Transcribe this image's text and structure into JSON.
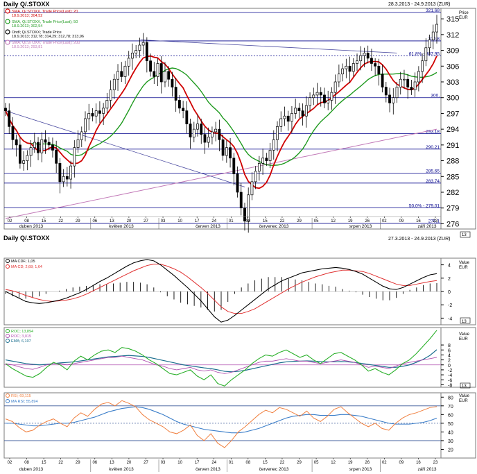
{
  "top_title": "Daily Q/.STOXX",
  "top_range": "28.3.2013 - 24.9.2013 (ZUR)",
  "bottom_title": "Daily Q/.STOXX",
  "bottom_range": "27.3.2013 - 24.9.2013 (ZUR)",
  "colors": {
    "candle": "#000000",
    "sma20": "#d00000",
    "sma50": "#1f9a1f",
    "sma200": "#c27ab8",
    "hline": "#00008b",
    "macd": "#000000",
    "macd_signal": "#e03030",
    "hist": "#000000",
    "roc": "#2ab02a",
    "roc2": "#b050b0",
    "ema": "#1a6e8e",
    "rsi": "#f08040",
    "marsi": "#3b7ec9",
    "band": "#3b5998"
  },
  "legend_top": [
    {
      "line1": "SMA, Q/.STOXX, Trade Price(Last); 20",
      "line2": "18.9.2013; 304,52",
      "color": "#d00000"
    },
    {
      "line1": "SMA, Q/.STOXX, Trade Price(Last); 50",
      "line2": "18.9.2013; 302,54",
      "color": "#1f9a1f"
    },
    {
      "line1": "Ondl; Q/.STOXX; Trade Price",
      "line2": "18.9.2013; 312,78; 314,29; 312,78; 313,96",
      "color": "#000000"
    },
    {
      "line1": "SMA, Q/.STOXX, Trade Price(Last); 200",
      "line2": "18.9.2013; 293,81",
      "color": "#c27ab8"
    }
  ],
  "legend_macd": [
    {
      "text": "MA CDF; 1,05",
      "color": "#000000"
    },
    {
      "text": "MA CD; 2,68; 1,64",
      "color": "#e03030"
    }
  ],
  "legend_roc": [
    {
      "text": "ROC; 13,894",
      "color": "#2ab02a"
    },
    {
      "text": "ROC; 3,015",
      "color": "#b050b0"
    },
    {
      "text": "EMA; 6,107",
      "color": "#1a6e8e"
    }
  ],
  "legend_rsi": [
    {
      "text": "RSI; 69,115",
      "color": "#f08040"
    },
    {
      "text": "MA RSI; 55,894",
      "color": "#3b7ec9"
    }
  ],
  "axis_labels": {
    "price_top": "Price",
    "price_unit": "EUR",
    "value": "Value",
    "value_unit": "EUR",
    "scale_top": "13",
    "scale_mid": "13",
    "scale_roc": "13",
    "scale_rsi": "13"
  },
  "x_day_ticks": [
    "02",
    "08",
    "15",
    "22",
    "29",
    "06",
    "13",
    "20",
    "27",
    "03",
    "10",
    "17",
    "24",
    "01",
    "08",
    "15",
    "22",
    "29",
    "05",
    "12",
    "19",
    "26",
    "02",
    "09",
    "16",
    "23"
  ],
  "months": [
    "duben 2013",
    "květen 2013",
    "červen 2013",
    "červenec 2013",
    "srpen 2013",
    "září 2013"
  ],
  "fib_labels": [
    "321,68",
    "310,8",
    "61,8% - 307,95",
    "300,",
    "293,18",
    "290,21",
    "285,65",
    "283,74",
    "50,0% - 279,01",
    "276,1"
  ],
  "chart_data": [
    {
      "type": "candlestick",
      "title": "Daily Q/.STOXX",
      "ylabel": "Price EUR",
      "ylim": [
        275,
        317
      ],
      "yticks": [
        276,
        279,
        282,
        285,
        288,
        291,
        294,
        297,
        300,
        303,
        306,
        309,
        312,
        315
      ],
      "hlines": [
        321.68,
        310.8,
        307.95,
        300,
        293.18,
        290.21,
        285.65,
        283.74,
        279.01,
        276.1
      ],
      "close": [
        297.5,
        294.5,
        292.0,
        291.0,
        287.5,
        288.0,
        289.0,
        290.5,
        291.5,
        289.5,
        292.0,
        291.5,
        291.0,
        290.0,
        287.5,
        284.0,
        285.0,
        284.5,
        287.0,
        290.5,
        292.0,
        293.5,
        296.0,
        297.0,
        296.5,
        297.5,
        297.0,
        298.0,
        299.5,
        301.5,
        303.5,
        305.0,
        304.0,
        306.0,
        307.5,
        308.5,
        309.0,
        310.0,
        310.5,
        307.0,
        305.0,
        304.0,
        306.5,
        303.0,
        305.0,
        303.5,
        302.0,
        299.5,
        298.0,
        297.5,
        295.0,
        292.5,
        294.0,
        295.0,
        293.0,
        291.5,
        292.5,
        293.5,
        294.0,
        292.0,
        289.0,
        290.5,
        288.5,
        285.5,
        282.0,
        279.0,
        276.5,
        281.5,
        284.0,
        286.0,
        287.5,
        288.5,
        288.0,
        290.0,
        292.0,
        294.5,
        296.0,
        296.5,
        295.5,
        297.0,
        298.0,
        297.5,
        296.5,
        298.5,
        300.0,
        300.5,
        301.0,
        300.5,
        299.0,
        299.5,
        301.0,
        303.0,
        304.5,
        305.5,
        306.0,
        305.0,
        306.5,
        307.0,
        308.0,
        308.5,
        307.5,
        306.5,
        306.0,
        304.5,
        302.0,
        300.5,
        299.0,
        300.0,
        302.0,
        303.5,
        303.5,
        302.0,
        301.5,
        303.0,
        305.0,
        307.0,
        309.5,
        311.0,
        312.5,
        313.96
      ]
    },
    {
      "type": "line",
      "title": "MACD",
      "ylabel": "Value EUR",
      "ylim": [
        -5,
        5
      ],
      "yticks": [
        -4,
        -2,
        0,
        2,
        4
      ],
      "macd": [
        0.0,
        -0.5,
        -1.0,
        -1.5,
        -1.7,
        -1.8,
        -1.7,
        -1.5,
        -1.3,
        -1.0,
        -0.6,
        -0.2,
        0.3,
        0.9,
        1.5,
        2.0,
        2.6,
        3.2,
        3.8,
        4.3,
        4.6,
        4.8,
        4.6,
        4.0,
        3.2,
        2.4,
        1.5,
        0.6,
        -0.4,
        -1.4,
        -2.6,
        -3.8,
        -4.6,
        -4.3,
        -3.6,
        -2.8,
        -2.0,
        -1.2,
        -0.4,
        0.4,
        1.0,
        1.6,
        2.0,
        2.4,
        2.8,
        3.0,
        3.2,
        3.4,
        3.5,
        3.6,
        3.5,
        3.3,
        3.0,
        2.6,
        2.0,
        1.4,
        0.8,
        0.4,
        0.3,
        0.6,
        1.1,
        1.6,
        2.1,
        2.5,
        2.68
      ],
      "signal": [
        0.3,
        0.1,
        -0.2,
        -0.6,
        -0.9,
        -1.2,
        -1.4,
        -1.5,
        -1.4,
        -1.3,
        -1.1,
        -0.8,
        -0.4,
        0.1,
        0.6,
        1.1,
        1.6,
        2.1,
        2.6,
        3.1,
        3.5,
        3.9,
        4.1,
        4.1,
        3.8,
        3.4,
        2.9,
        2.2,
        1.4,
        0.6,
        -0.3,
        -1.3,
        -2.3,
        -3.0,
        -3.3,
        -3.3,
        -3.0,
        -2.6,
        -2.0,
        -1.4,
        -0.8,
        -0.2,
        0.4,
        0.9,
        1.4,
        1.8,
        2.2,
        2.5,
        2.8,
        3.0,
        3.2,
        3.2,
        3.1,
        3.0,
        2.7,
        2.3,
        1.9,
        1.5,
        1.1,
        0.9,
        0.9,
        1.1,
        1.3,
        1.5,
        1.64
      ]
    },
    {
      "type": "line",
      "title": "ROC",
      "ylabel": "Value EUR",
      "ylim": [
        -9,
        15
      ],
      "yticks": [
        -8,
        -6,
        -4,
        -2,
        0,
        2,
        4,
        6,
        8
      ],
      "roc": [
        0.5,
        -1.5,
        -3.0,
        -4.5,
        -5.0,
        -3.5,
        -1.0,
        1.0,
        0.0,
        -2.0,
        1.5,
        3.5,
        2.0,
        4.0,
        5.5,
        6.0,
        5.0,
        7.0,
        6.5,
        5.5,
        4.0,
        2.0,
        0.5,
        -1.5,
        -3.5,
        -4.0,
        -3.0,
        -2.0,
        -4.5,
        -6.0,
        -4.0,
        -7.5,
        -8.5,
        -6.0,
        -4.0,
        -2.0,
        0.5,
        2.5,
        4.0,
        3.5,
        5.0,
        6.0,
        4.5,
        3.0,
        4.0,
        2.0,
        0.5,
        2.5,
        4.5,
        5.0,
        3.5,
        2.0,
        0.0,
        -2.5,
        -1.5,
        -3.0,
        -4.0,
        -2.0,
        0.5,
        2.0,
        4.5,
        7.5,
        10.5,
        13.894
      ],
      "roc2": [
        0.5,
        0.0,
        -0.8,
        -1.5,
        -1.8,
        -1.0,
        0.0,
        0.5,
        0.5,
        0.0,
        0.5,
        1.0,
        1.5,
        2.0,
        2.5,
        3.0,
        3.0,
        3.5,
        3.0,
        2.5,
        2.0,
        1.0,
        0.0,
        -0.5,
        -1.5,
        -2.0,
        -1.5,
        -1.0,
        -2.0,
        -2.5,
        -2.0,
        -3.0,
        -3.5,
        -3.0,
        -2.0,
        -1.0,
        0.0,
        1.0,
        1.5,
        1.5,
        2.0,
        2.5,
        2.0,
        1.5,
        1.5,
        1.0,
        0.5,
        1.0,
        1.5,
        2.0,
        1.5,
        1.0,
        0.0,
        -1.0,
        -0.5,
        -1.0,
        -1.5,
        -0.5,
        0.5,
        1.0,
        1.5,
        2.0,
        2.5,
        3.015
      ],
      "ema": [
        2.0,
        1.5,
        1.0,
        0.5,
        0.2,
        0.0,
        0.2,
        0.5,
        0.8,
        1.0,
        1.2,
        1.6,
        2.0,
        2.4,
        2.8,
        3.2,
        3.4,
        3.6,
        3.8,
        3.6,
        3.4,
        3.0,
        2.4,
        1.8,
        1.2,
        0.6,
        0.0,
        -0.4,
        -0.8,
        -1.2,
        -1.5,
        -2.0,
        -2.6,
        -2.8,
        -2.6,
        -2.2,
        -1.6,
        -1.0,
        -0.4,
        0.2,
        0.8,
        1.2,
        1.4,
        1.5,
        1.6,
        1.5,
        1.3,
        1.2,
        1.2,
        1.3,
        1.2,
        1.0,
        0.6,
        0.2,
        -0.2,
        -0.6,
        -1.0,
        -1.0,
        -0.6,
        0.0,
        1.0,
        2.2,
        3.8,
        6.107
      ]
    },
    {
      "type": "line",
      "title": "RSI",
      "ylabel": "Value EUR",
      "ylim": [
        10,
        85
      ],
      "yticks": [
        20,
        30,
        40,
        50,
        60,
        70,
        80
      ],
      "hlines": [
        70,
        50,
        30
      ],
      "rsi": [
        55,
        52,
        45,
        40,
        42,
        48,
        52,
        55,
        50,
        46,
        56,
        62,
        58,
        66,
        72,
        74,
        70,
        76,
        73,
        69,
        60,
        54,
        50,
        46,
        40,
        38,
        42,
        48,
        36,
        30,
        38,
        27,
        22,
        30,
        40,
        46,
        53,
        60,
        65,
        62,
        68,
        66,
        62,
        58,
        64,
        56,
        52,
        58,
        66,
        69,
        62,
        56,
        50,
        46,
        50,
        44,
        42,
        50,
        56,
        60,
        62,
        65,
        68,
        69.115
      ],
      "marsi": [
        50,
        50,
        49,
        48,
        47,
        47,
        48,
        49,
        50,
        50,
        51,
        53,
        55,
        57,
        60,
        63,
        65,
        67,
        68,
        69,
        68,
        66,
        63,
        60,
        56,
        52,
        49,
        47,
        45,
        43,
        42,
        41,
        40,
        39,
        39,
        40,
        42,
        44,
        47,
        50,
        53,
        56,
        58,
        59,
        60,
        60,
        59,
        59,
        59,
        60,
        60,
        59,
        58,
        56,
        54,
        52,
        50,
        49,
        49,
        49,
        50,
        51,
        53,
        55.894
      ]
    }
  ]
}
